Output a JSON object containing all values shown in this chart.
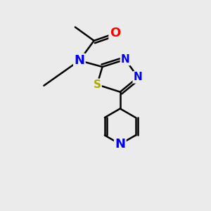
{
  "background_color": "#ebebeb",
  "atom_colors": {
    "C": "#000000",
    "N": "#0000ee",
    "O": "#ff0000",
    "S": "#aaaa00",
    "H": "#000000"
  },
  "bond_color": "#000000",
  "bond_width": 1.8,
  "font_size": 13,
  "font_size_small": 11
}
